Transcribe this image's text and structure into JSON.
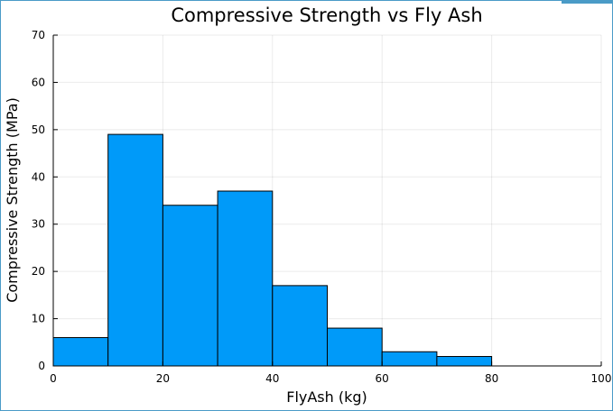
{
  "chart_data": {
    "type": "bar",
    "title": "Compressive Strength vs Fly Ash",
    "xlabel": "FlyAsh (kg)",
    "ylabel": "Compressive Strength (MPa)",
    "bins": [
      {
        "from": 0,
        "to": 10,
        "value": 6
      },
      {
        "from": 10,
        "to": 20,
        "value": 49
      },
      {
        "from": 20,
        "to": 30,
        "value": 34
      },
      {
        "from": 30,
        "to": 40,
        "value": 37
      },
      {
        "from": 40,
        "to": 50,
        "value": 17
      },
      {
        "from": 50,
        "to": 60,
        "value": 8
      },
      {
        "from": 60,
        "to": 70,
        "value": 3
      },
      {
        "from": 70,
        "to": 80,
        "value": 2
      }
    ],
    "xlim": [
      0,
      100
    ],
    "ylim": [
      0,
      70
    ],
    "xticks": [
      "0",
      "20",
      "40",
      "60",
      "80",
      "100"
    ],
    "yticks": [
      "0",
      "10",
      "20",
      "30",
      "40",
      "50",
      "60",
      "70"
    ],
    "grid": true,
    "legend": false,
    "bar_color": "#009af9",
    "edge_color": "#000000"
  }
}
